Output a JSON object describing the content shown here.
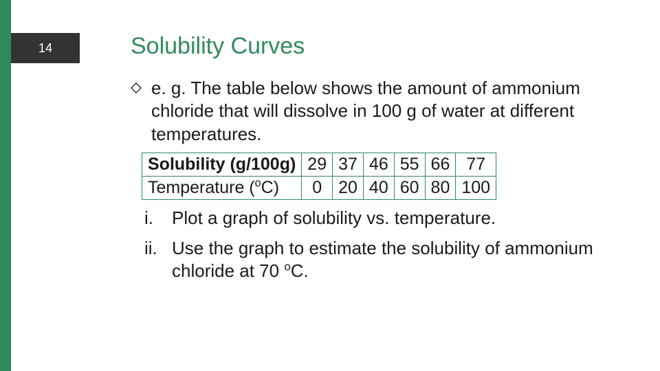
{
  "page": {
    "number": "14",
    "accent_color": "#2f8a5b",
    "badge_bg": "#333333"
  },
  "title": {
    "text": "Solubility Curves",
    "color": "#2f8a5b"
  },
  "intro": {
    "text": "e. g. The table below shows the amount of ammonium chloride that will dissolve in 100 g of water at different temperatures.",
    "fontsize": 26,
    "text_color": "#1a1a1a"
  },
  "table": {
    "type": "table",
    "border_color": "#2f8a5b",
    "background_color": "#ffffff",
    "cell_fontsize": 25,
    "columns": [
      "Label",
      "c1",
      "c2",
      "c3",
      "c4",
      "c5",
      "c6"
    ],
    "rows": [
      {
        "label_html": "Solubility (g/100g)",
        "values": [
          "29",
          "37",
          "46",
          "55",
          "66",
          "77"
        ],
        "label_bold": true
      },
      {
        "label_html": "Temperature (<span class=\"sup\">o</span>C)",
        "values": [
          "0",
          "20",
          "40",
          "60",
          "80",
          "100"
        ],
        "label_bold": false
      }
    ]
  },
  "tasks": {
    "i": "Plot a graph of solubility vs. temperature.",
    "ii_html": "Use the graph to estimate the solubility of ammonium chloride at 70 <span class=\"sup\">o</span>C."
  },
  "bullet_marker": {
    "stroke": "#333333",
    "fill": "none"
  }
}
